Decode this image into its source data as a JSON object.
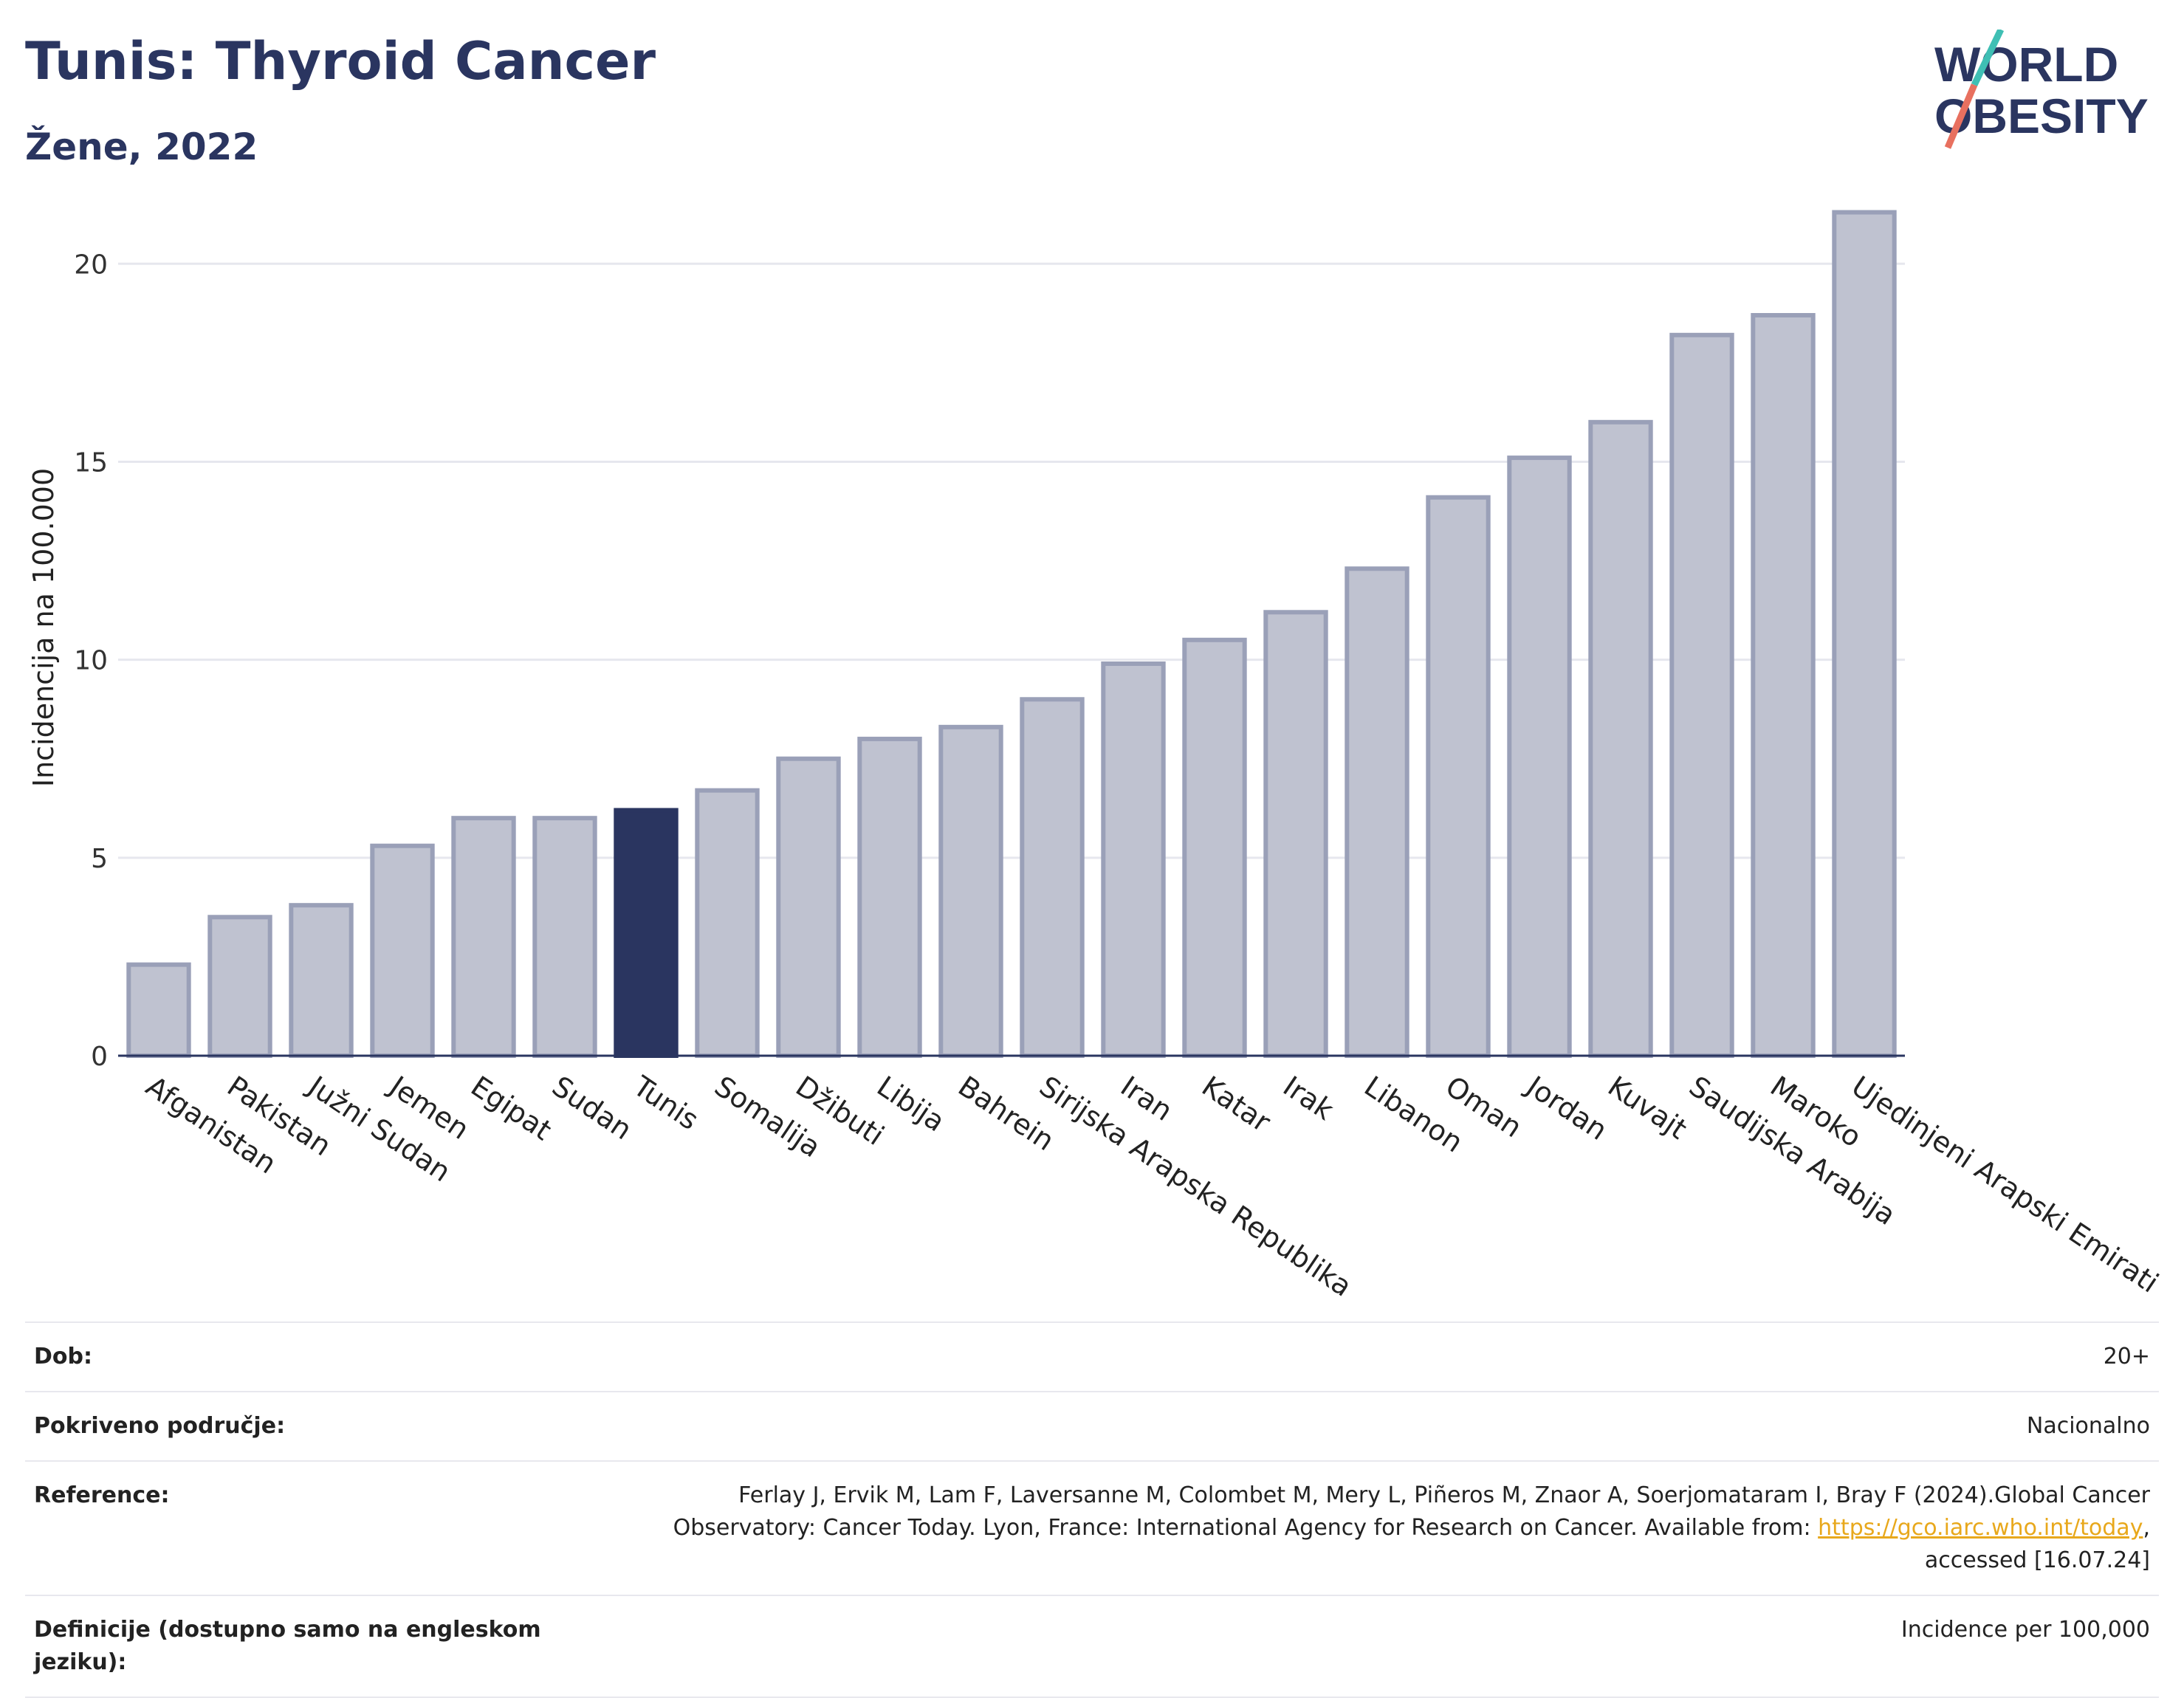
{
  "header": {
    "title": "Tunis: Thyroid Cancer",
    "subtitle": "Žene, 2022"
  },
  "logo": {
    "line1": "WORLD",
    "line2": "OBESITY"
  },
  "colors": {
    "highlight": "#2a3560",
    "bar_fill": "#bfc2d0",
    "bar_stroke": "#9aa0b8",
    "title": "#2a3560",
    "logo_teal": "#3fbfb4",
    "logo_red": "#e8705f"
  },
  "chart_data": {
    "type": "bar",
    "ylabel": "Incidencija na 100.000",
    "ylim": [
      0,
      22
    ],
    "yticks": [
      0,
      5,
      10,
      15,
      20
    ],
    "grid": true,
    "highlight": "Tunis",
    "categories": [
      "Afganistan",
      "Pakistan",
      "Južni Sudan",
      "Jemen",
      "Egipat",
      "Sudan",
      "Tunis",
      "Somalija",
      "Džibuti",
      "Libija",
      "Bahrein",
      "Sirijska Arapska Republika",
      "Iran",
      "Katar",
      "Irak",
      "Libanon",
      "Oman",
      "Jordan",
      "Kuvajt",
      "Saudijska Arabija",
      "Maroko",
      "Ujedinjeni Arapski Emirati"
    ],
    "values": [
      2.3,
      3.5,
      3.8,
      5.3,
      6.0,
      6.0,
      6.2,
      6.7,
      7.5,
      8.0,
      8.3,
      9.0,
      9.9,
      10.5,
      11.2,
      12.3,
      14.1,
      15.1,
      16.0,
      18.2,
      18.7,
      21.3
    ]
  },
  "info": {
    "age_label": "Dob:",
    "age_value": "20+",
    "coverage_label": "Pokriveno područje:",
    "coverage_value": "Nacionalno",
    "reference_label": "Reference:",
    "reference_text": "Ferlay J, Ervik M, Lam F, Laversanne M, Colombet M, Mery L, Piñeros M, Znaor A, Soerjomataram I, Bray F (2024).Global Cancer Observatory: Cancer Today. Lyon, France: International Agency for Research on Cancer. Available from:",
    "reference_link": "https://gco.iarc.who.int/today",
    "reference_tail": ", accessed [16.07.24]",
    "definitions_label": "Definicije (dostupno samo na engleskom jeziku):",
    "definitions_value": "Incidence per 100,000"
  }
}
